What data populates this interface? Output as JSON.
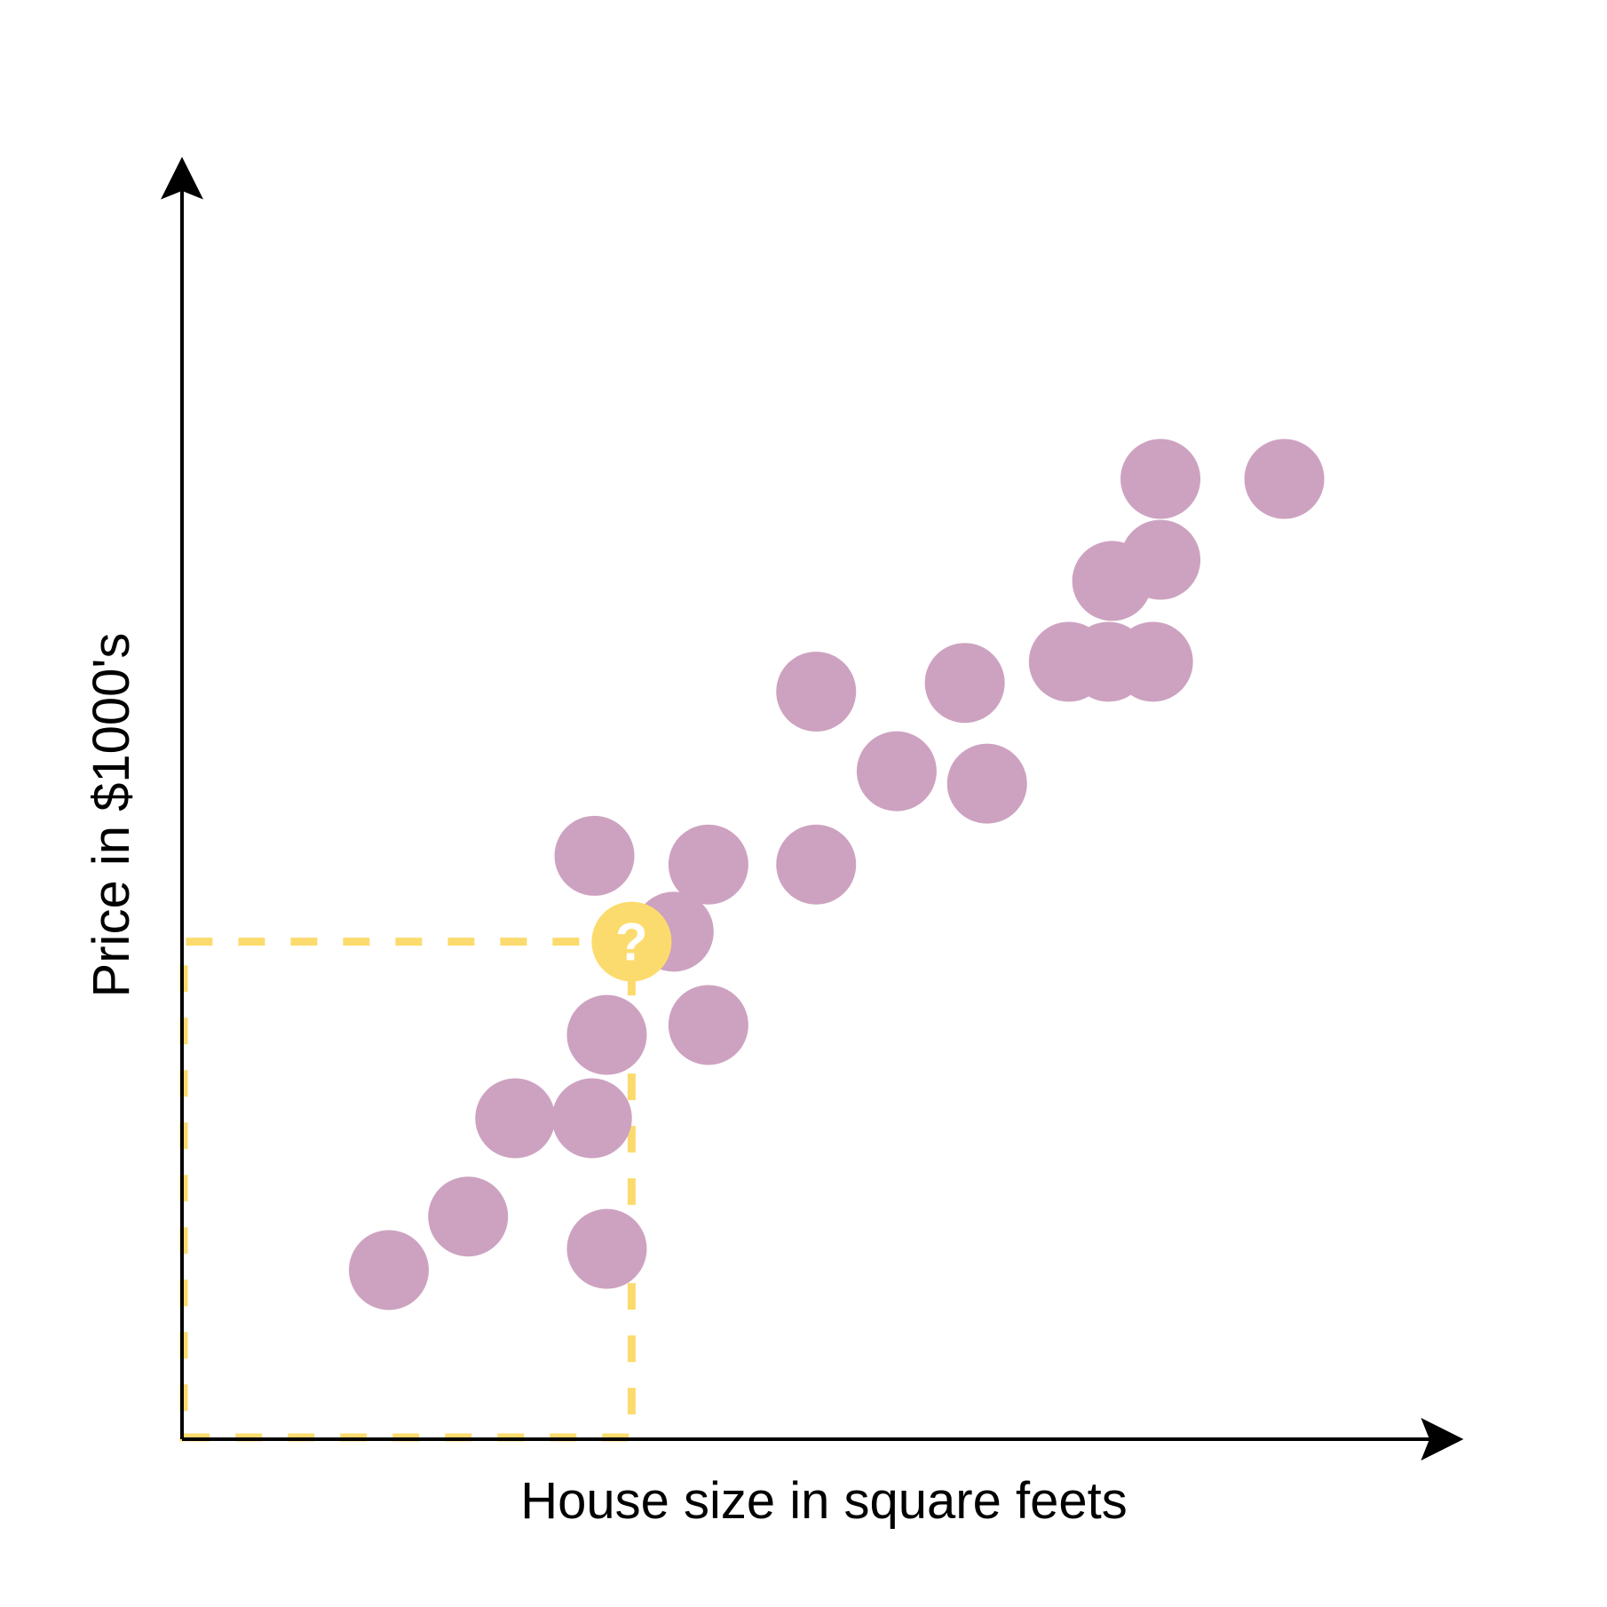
{
  "chart_data": {
    "type": "scatter",
    "title": "",
    "xlabel": "House size in square feets",
    "ylabel": "Price in $1000's",
    "xlim": [
      0,
      1000
    ],
    "ylim": [
      0,
      1000
    ],
    "grid": false,
    "legend": "none",
    "series": [
      {
        "color": "#cda2c0",
        "points": [
          {
            "x": 167,
            "y": 136
          },
          {
            "x": 231,
            "y": 179
          },
          {
            "x": 269,
            "y": 258
          },
          {
            "x": 331,
            "y": 258
          },
          {
            "x": 343,
            "y": 153
          },
          {
            "x": 343,
            "y": 325
          },
          {
            "x": 333,
            "y": 469
          },
          {
            "x": 397,
            "y": 408
          },
          {
            "x": 425,
            "y": 462
          },
          {
            "x": 425,
            "y": 333
          },
          {
            "x": 512,
            "y": 462
          },
          {
            "x": 512,
            "y": 601
          },
          {
            "x": 577,
            "y": 537
          },
          {
            "x": 650,
            "y": 527
          },
          {
            "x": 632,
            "y": 608
          },
          {
            "x": 748,
            "y": 625
          },
          {
            "x": 716,
            "y": 625
          },
          {
            "x": 784,
            "y": 625
          },
          {
            "x": 751,
            "y": 690
          },
          {
            "x": 790,
            "y": 707
          },
          {
            "x": 790,
            "y": 772
          },
          {
            "x": 890,
            "y": 772
          }
        ]
      }
    ],
    "query_point": {
      "x": 363,
      "y": 400,
      "label": "?",
      "color": "#fcdb6e"
    }
  }
}
